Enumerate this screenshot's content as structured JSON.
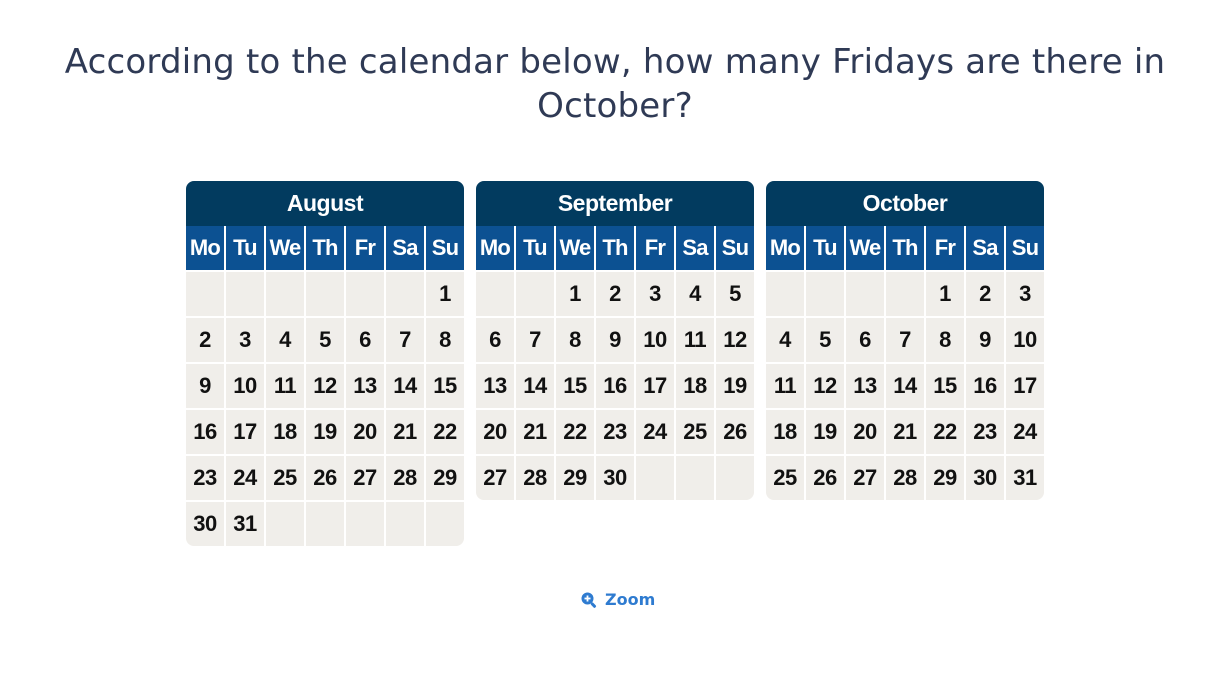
{
  "question": "According to the calendar below, how many Fridays are there in October?",
  "weekdays": [
    "Mo",
    "Tu",
    "We",
    "Th",
    "Fr",
    "Sa",
    "Su"
  ],
  "months": [
    {
      "name": "August",
      "cells": [
        "",
        "",
        "",
        "",
        "",
        "",
        "1",
        "2",
        "3",
        "4",
        "5",
        "6",
        "7",
        "8",
        "9",
        "10",
        "11",
        "12",
        "13",
        "14",
        "15",
        "16",
        "17",
        "18",
        "19",
        "20",
        "21",
        "22",
        "23",
        "24",
        "25",
        "26",
        "27",
        "28",
        "29",
        "30",
        "31",
        "",
        "",
        "",
        "",
        ""
      ]
    },
    {
      "name": "September",
      "cells": [
        "",
        "",
        "1",
        "2",
        "3",
        "4",
        "5",
        "6",
        "7",
        "8",
        "9",
        "10",
        "11",
        "12",
        "13",
        "14",
        "15",
        "16",
        "17",
        "18",
        "19",
        "20",
        "21",
        "22",
        "23",
        "24",
        "25",
        "26",
        "27",
        "28",
        "29",
        "30",
        "",
        "",
        ""
      ]
    },
    {
      "name": "October",
      "cells": [
        "",
        "",
        "",
        "",
        "1",
        "2",
        "3",
        "4",
        "5",
        "6",
        "7",
        "8",
        "9",
        "10",
        "11",
        "12",
        "13",
        "14",
        "15",
        "16",
        "17",
        "18",
        "19",
        "20",
        "21",
        "22",
        "23",
        "24",
        "25",
        "26",
        "27",
        "28",
        "29",
        "30",
        "31"
      ]
    }
  ],
  "zoom": {
    "label": "Zoom",
    "icon": "zoom-in-icon",
    "color": "#2e7bd0"
  },
  "colors": {
    "month_header": "#023b5f",
    "weekday_header": "#0c5192",
    "cell_background": "#f0eeea"
  }
}
